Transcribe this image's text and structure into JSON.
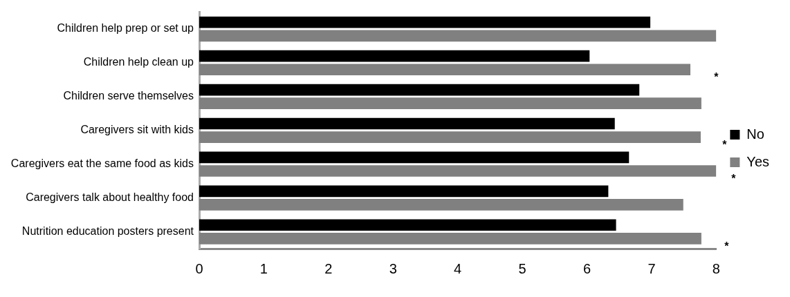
{
  "chart_data": {
    "type": "bar",
    "orientation": "horizontal",
    "categories": [
      "Children help prep or set up",
      "Children help clean up",
      "Children serve themselves",
      "Caregivers sit with kids",
      "Caregivers eat the same food as kids",
      "Caregivers talk about healthy food",
      "Nutrition education posters present"
    ],
    "series": [
      {
        "name": "No",
        "color": "#000000",
        "values": [
          6.98,
          6.04,
          6.81,
          6.43,
          6.65,
          6.33,
          6.45
        ]
      },
      {
        "name": "Yes",
        "color": "#808080",
        "values": [
          8.0,
          7.6,
          7.77,
          7.76,
          8.0,
          7.49,
          7.77
        ]
      }
    ],
    "xlim": [
      0,
      8
    ],
    "xticks": [
      0,
      1,
      2,
      3,
      4,
      5,
      6,
      7,
      8
    ],
    "grid": false,
    "legend": "right",
    "annotations": [
      "*",
      "*",
      "*",
      "*"
    ]
  }
}
